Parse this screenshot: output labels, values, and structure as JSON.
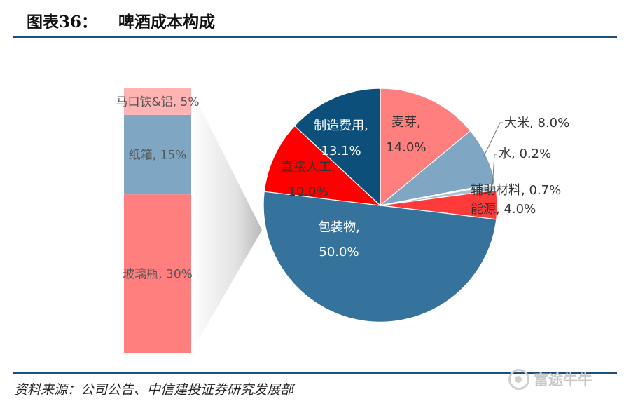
{
  "header": {
    "figure_no": "图表36：",
    "title": "啤酒成本构成"
  },
  "source": "资料来源：公司公告、中信建投证券研究发展部",
  "watermark": "富途牛牛",
  "colors": {
    "accent": "#1f4e79",
    "salmon": "#ff7f7f",
    "slate": "#7fa6c3",
    "steel": "#36739c",
    "navy": "#0b4f7a",
    "red": "#ff0000",
    "lightred": "#ff3a3a"
  },
  "chart_data": [
    {
      "type": "pie",
      "series": [
        {
          "values": [
            14.0,
            8.0,
            0.2,
            0.7,
            4.0,
            50.0,
            10.0,
            13.1
          ],
          "labels": [
            "麦芽,",
            "大米, 8.0%",
            "水, 0.2%",
            "辅助材料, 0.7%",
            "能源, 4.0%",
            "包装物,",
            "直接人工,",
            "制造费用,"
          ],
          "value_labels": [
            "14.0%",
            "",
            "",
            "",
            "",
            "50.0%",
            "10.0%",
            "13.1%"
          ],
          "colors": [
            "#ff7f7f",
            "#7fa6c3",
            "#d0d0d0",
            "#a9c1d6",
            "#ff3a3a",
            "#36739c",
            "#ff0000",
            "#0b4f7a"
          ]
        }
      ]
    },
    {
      "type": "bar",
      "stacked": true,
      "categories": [
        "包装物"
      ],
      "series": [
        {
          "name": "玻璃瓶, 30%",
          "values": [
            30
          ],
          "color": "#ff7f7f"
        },
        {
          "name": "纸箱, 15%",
          "values": [
            15
          ],
          "color": "#7fa6c3"
        },
        {
          "name": "马口铁&铝, 5%",
          "values": [
            5
          ],
          "color": "#ffb3b3"
        }
      ]
    }
  ]
}
